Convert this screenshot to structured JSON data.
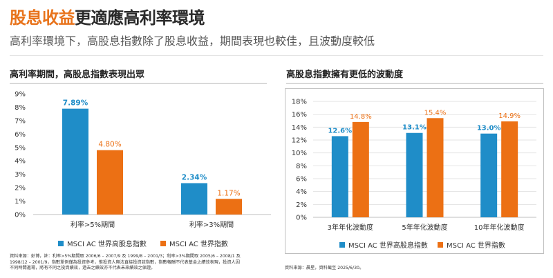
{
  "header": {
    "title_highlight": "股息收益",
    "title_rest": "更適應高利率環境",
    "subtitle": "高利率環境下，高股息指數除了股息收益，期間表現也較佳，且波動度較低"
  },
  "colors": {
    "accent": "#e8731b",
    "series_blue": "#1f8dc8",
    "series_orange": "#ec7014"
  },
  "chart_data": [
    {
      "type": "bar",
      "title": "高利率期間，高股息指數表現出眾",
      "categories": [
        "利率>5%期間",
        "利率>3%期間"
      ],
      "series": [
        {
          "name": "MSCI AC 世界高股息指數",
          "values": [
            7.89,
            2.34
          ],
          "labels": [
            "7.89%",
            "2.34%"
          ]
        },
        {
          "name": "MSCI AC 世界指數",
          "values": [
            4.8,
            1.17
          ],
          "labels": [
            "4.80%",
            "1.17%"
          ]
        }
      ],
      "ylim": [
        0,
        9
      ],
      "yticks": [
        "0%",
        "1%",
        "2%",
        "3%",
        "4%",
        "5%",
        "6%",
        "7%",
        "8%",
        "9%"
      ],
      "legend_position": "bottom",
      "grid": false
    },
    {
      "type": "bar",
      "title": "高股息指數擁有更低的波動度",
      "categories": [
        "3年年化波動度",
        "5年年化波動度",
        "10年年化波動度"
      ],
      "series": [
        {
          "name": "MSCI AC 世界高股息指數",
          "values": [
            12.6,
            13.1,
            13.0
          ],
          "labels": [
            "12.6%",
            "13.1%",
            "13.0%"
          ]
        },
        {
          "name": "MSCI AC 世界指數",
          "values": [
            14.8,
            15.4,
            14.9
          ],
          "labels": [
            "14.8%",
            "15.4%",
            "14.9%"
          ]
        }
      ],
      "ylim": [
        0,
        18
      ],
      "yticks": [
        "0%",
        "2%",
        "4%",
        "6%",
        "8%",
        "10%",
        "12%",
        "14%",
        "16%",
        "18%"
      ],
      "legend_position": "bottom",
      "grid": true
    }
  ],
  "footnotes": {
    "left": [
      "資料來源：彭博，註：利率>5%期間取 2006/6 – 2007/9 及 1999/8 – 2001/3；利率>3%期間取 2005/6 – 2008/1 及",
      "1998/12 – 2001/9，指數單例僅為投資參考，惟投資人無法直接投資該指數，指數報酬不代表基金之績效表現，投資人因",
      "不同時間進場，將有不同之投資績效，過去之績效亦不代表未來績效之保證。"
    ],
    "right": "資料來源：晨星，資料截至 2025/6/30。"
  }
}
